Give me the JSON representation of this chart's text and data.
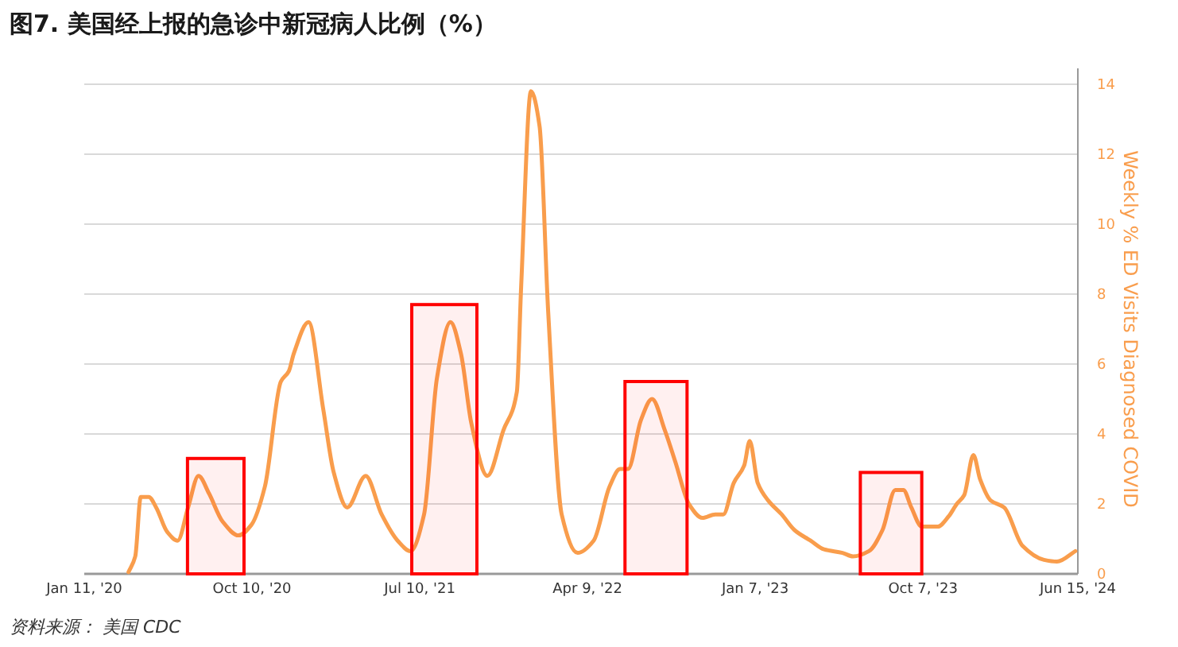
{
  "chart_data": {
    "type": "line",
    "title": "图7. 美国经上报的急诊中新冠病人比例（%）",
    "y2label": "Weekly % ED Visits Diagnosed COVID",
    "annotations": [
      "资料来源： 美国 CDC"
    ],
    "xlim": [
      "2020-01-11",
      "2024-06-15"
    ],
    "xticks": [
      {
        "value": "2020-01-11",
        "label": "Jan 11, '20"
      },
      {
        "value": "2020-10-10",
        "label": "Oct 10, '20"
      },
      {
        "value": "2021-07-10",
        "label": "Jul 10, '21"
      },
      {
        "value": "2022-04-09",
        "label": "Apr 9, '22"
      },
      {
        "value": "2023-01-07",
        "label": "Jan 7, '23"
      },
      {
        "value": "2023-10-07",
        "label": "Oct 7, '23"
      },
      {
        "value": "2024-06-15",
        "label": "Jun 15, '24"
      }
    ],
    "y2lim": [
      0,
      14
    ],
    "y2ticks": [
      0,
      2,
      4,
      6,
      8,
      10,
      12,
      14
    ],
    "grid": "y",
    "bands": [
      {
        "axis": "x",
        "from": "2020-06-27",
        "to": "2020-09-27",
        "color": "#ff0000"
      },
      {
        "axis": "x",
        "from": "2021-06-27",
        "to": "2021-10-11",
        "color": "#ff0000"
      },
      {
        "axis": "x",
        "from": "2022-06-09",
        "to": "2022-09-18",
        "color": "#ff0000"
      },
      {
        "axis": "x",
        "from": "2023-06-27",
        "to": "2023-10-05",
        "color": "#ff0000"
      }
    ],
    "series": [
      {
        "axis": "y2",
        "color": "#f99d4c",
        "x": [
          "2020-03-23",
          "2020-04-03",
          "2020-04-12",
          "2020-04-25",
          "2020-05-07",
          "2020-05-25",
          "2020-06-11",
          "2020-06-28",
          "2020-07-15",
          "2020-08-01",
          "2020-08-23",
          "2020-09-18",
          "2020-10-09",
          "2020-10-31",
          "2020-11-26",
          "2020-12-09",
          "2020-12-17",
          "2021-01-10",
          "2021-02-03",
          "2021-02-20",
          "2021-03-14",
          "2021-04-13",
          "2021-05-09",
          "2021-06-04",
          "2021-06-25",
          "2021-07-17",
          "2021-08-07",
          "2021-08-29",
          "2021-09-15",
          "2021-10-02",
          "2021-10-28",
          "2021-11-23",
          "2021-12-15",
          "2021-12-22",
          "2022-01-07",
          "2022-01-21",
          "2022-02-04",
          "2022-02-26",
          "2022-03-24",
          "2022-04-19",
          "2022-05-15",
          "2022-06-01",
          "2022-06-14",
          "2022-07-05",
          "2022-07-23",
          "2022-08-13",
          "2022-08-30",
          "2022-09-21",
          "2022-10-13",
          "2022-11-03",
          "2022-11-16",
          "2022-12-03",
          "2022-12-20",
          "2022-12-29",
          "2023-01-11",
          "2023-01-28",
          "2023-02-19",
          "2023-03-12",
          "2023-04-07",
          "2023-04-29",
          "2023-05-29",
          "2023-06-15",
          "2023-07-11",
          "2023-08-02",
          "2023-08-23",
          "2023-09-05",
          "2023-09-18",
          "2023-10-05",
          "2023-10-31",
          "2023-11-18",
          "2023-12-01",
          "2023-12-13",
          "2023-12-28",
          "2024-01-08",
          "2024-01-25",
          "2024-02-16",
          "2024-03-17",
          "2024-04-21",
          "2024-05-12",
          "2024-06-11"
        ],
        "values": [
          0.05,
          0.5,
          2.2,
          2.2,
          1.9,
          1.2,
          0.95,
          1.9,
          2.8,
          2.3,
          1.5,
          1.1,
          1.4,
          2.5,
          5.5,
          5.8,
          6.3,
          7.2,
          4.7,
          2.9,
          1.9,
          2.8,
          1.7,
          0.95,
          0.65,
          1.7,
          5.6,
          7.2,
          6.3,
          4.3,
          2.8,
          4.1,
          5.2,
          8.2,
          13.8,
          12.8,
          7.5,
          1.7,
          0.6,
          0.95,
          2.5,
          3.0,
          3.0,
          4.4,
          5.0,
          4.1,
          3.2,
          2.0,
          1.6,
          1.7,
          1.7,
          2.6,
          3.1,
          3.8,
          2.6,
          2.1,
          1.7,
          1.25,
          0.95,
          0.7,
          0.6,
          0.5,
          0.65,
          1.25,
          2.4,
          2.4,
          1.9,
          1.35,
          1.35,
          1.65,
          2.0,
          2.25,
          3.4,
          2.7,
          2.1,
          1.9,
          0.8,
          0.4,
          0.35,
          0.65
        ]
      }
    ]
  }
}
